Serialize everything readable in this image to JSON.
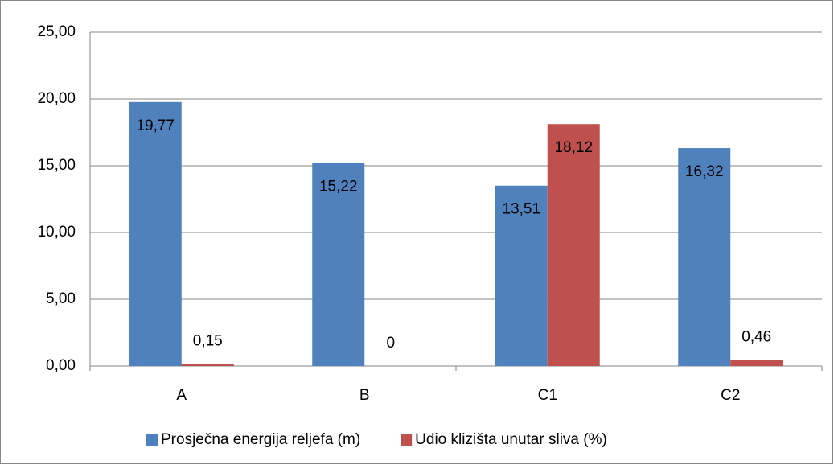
{
  "chart_data": {
    "type": "bar",
    "categories": [
      "A",
      "B",
      "C1",
      "C2"
    ],
    "series": [
      {
        "name": "Prosječna energija reljefa (m)",
        "color": "#4f81bd",
        "values": [
          19.77,
          15.22,
          13.51,
          16.32
        ],
        "value_labels": [
          "19,77",
          "15,22",
          "13,51",
          "16,32"
        ]
      },
      {
        "name": "Udio klizišta unutar sliva (%)",
        "color": "#c0504d",
        "values": [
          0.15,
          0,
          18.12,
          0.46
        ],
        "value_labels": [
          "0,15",
          "0",
          "18,12",
          "0,46"
        ]
      }
    ],
    "ylim": [
      0,
      25
    ],
    "yticks": [
      {
        "value": 0,
        "label": "0,00"
      },
      {
        "value": 5,
        "label": "5,00"
      },
      {
        "value": 10,
        "label": "10,00"
      },
      {
        "value": 15,
        "label": "15,00"
      },
      {
        "value": 20,
        "label": "20,00"
      },
      {
        "value": 25,
        "label": "25,00"
      }
    ],
    "grid": true,
    "legend": "bottom"
  }
}
